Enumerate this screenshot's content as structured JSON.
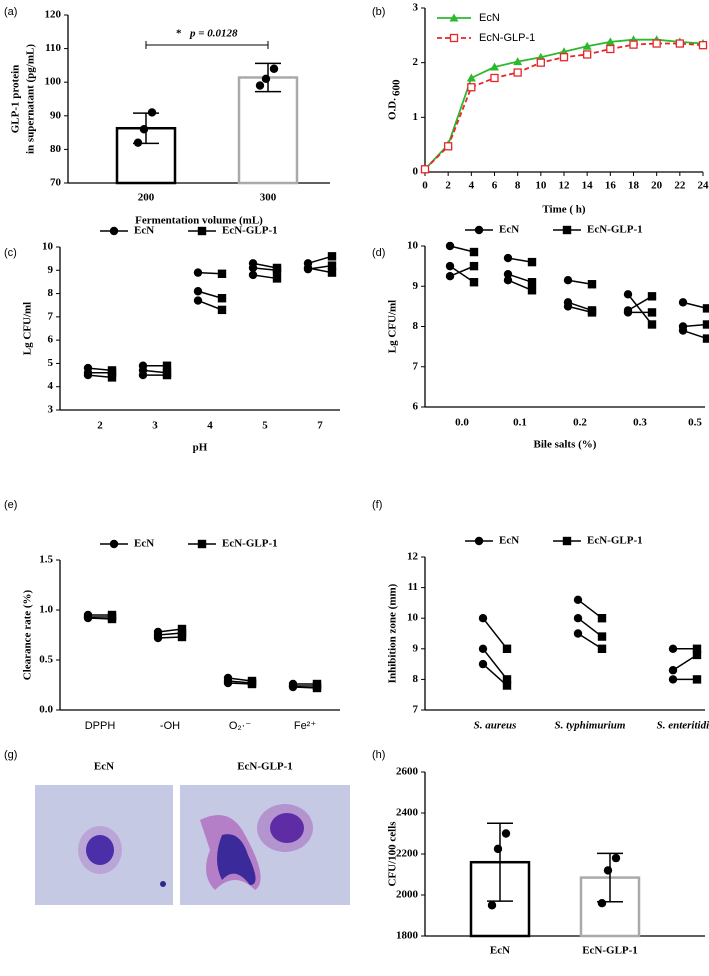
{
  "chart_data": [
    {
      "type": "bar",
      "panel_label": "(a)",
      "categories": [
        "200",
        "300"
      ],
      "values": [
        86.3,
        101.4
      ],
      "errors": [
        4.5,
        4.2
      ],
      "points": [
        [
          91,
          86,
          82
        ],
        [
          104,
          101,
          99
        ]
      ],
      "colors": [
        "#000000",
        "#aaaaaa"
      ],
      "ylim": [
        70,
        120
      ],
      "yticks": [
        70,
        80,
        90,
        100,
        110,
        120
      ],
      "ylabel": [
        "GLP-1 protein",
        "in supernatant (pg/mL)"
      ],
      "xlabel": "Fermentation volume (mL)",
      "annotation": {
        "star": "*",
        "text": "p = 0.0128"
      }
    },
    {
      "type": "line",
      "panel_label": "(b)",
      "x": [
        0,
        2,
        4,
        6,
        8,
        10,
        12,
        14,
        16,
        18,
        20,
        22,
        24
      ],
      "xlim": [
        0,
        24
      ],
      "xticks": [
        0,
        2,
        4,
        6,
        8,
        10,
        12,
        14,
        16,
        18,
        20,
        22,
        24
      ],
      "ylim": [
        0,
        3
      ],
      "yticks": [
        0,
        1,
        2,
        3
      ],
      "ylabel": "O.D.",
      "ylabel_sub": "600",
      "xlabel": "Time ( h)",
      "legend": "top-left",
      "series": [
        {
          "name": "EcN",
          "color": "#2db82d",
          "marker": "triangle",
          "dash": false,
          "values": [
            0.05,
            0.5,
            1.72,
            1.92,
            2.02,
            2.1,
            2.2,
            2.3,
            2.38,
            2.42,
            2.42,
            2.38,
            2.35
          ]
        },
        {
          "name": "EcN-GLP-1",
          "color": "#e8262a",
          "marker": "open-square",
          "dash": true,
          "values": [
            0.05,
            0.47,
            1.55,
            1.72,
            1.82,
            2.0,
            2.1,
            2.15,
            2.25,
            2.33,
            2.35,
            2.35,
            2.32
          ]
        }
      ]
    },
    {
      "type": "paired",
      "panel_label": "(c)",
      "categories": [
        "2",
        "3",
        "4",
        "5",
        "7"
      ],
      "ylim": [
        3,
        10
      ],
      "yticks": [
        3,
        4,
        5,
        6,
        7,
        8,
        9,
        10
      ],
      "ylabel": "Lg CFU/ml",
      "xlabel": "pH",
      "legend": "top",
      "series": [
        {
          "name": "EcN",
          "marker": "circle",
          "values": [
            [
              4.8,
              4.6,
              4.5
            ],
            [
              4.9,
              4.7,
              4.5
            ],
            [
              8.9,
              8.1,
              7.7
            ],
            [
              9.3,
              9.1,
              8.8
            ],
            [
              9.3,
              9.1,
              9.05
            ]
          ]
        },
        {
          "name": "EcN-GLP-1",
          "marker": "square",
          "values": [
            [
              4.7,
              4.6,
              4.4
            ],
            [
              4.9,
              4.6,
              4.5
            ],
            [
              8.85,
              7.8,
              7.3
            ],
            [
              9.1,
              9.0,
              8.65
            ],
            [
              9.6,
              8.9,
              9.2
            ]
          ]
        }
      ]
    },
    {
      "type": "paired",
      "panel_label": "(d)",
      "categories": [
        "0.0",
        "0.1",
        "0.2",
        "0.3",
        "0.5"
      ],
      "ylim": [
        6,
        10
      ],
      "yticks": [
        6,
        7,
        8,
        9,
        10
      ],
      "ylabel": "Lg CFU/ml",
      "xlabel": "Bile salts (%)",
      "legend": "top",
      "series": [
        {
          "name": "EcN",
          "marker": "circle",
          "values": [
            [
              10,
              9.5,
              9.25
            ],
            [
              9.7,
              9.3,
              9.15
            ],
            [
              9.15,
              8.6,
              8.5
            ],
            [
              8.8,
              8.4,
              8.35
            ],
            [
              8.6,
              8.0,
              7.9
            ]
          ]
        },
        {
          "name": "EcN-GLP-1",
          "marker": "square",
          "values": [
            [
              9.85,
              9.1,
              9.5
            ],
            [
              9.6,
              9.1,
              8.9
            ],
            [
              9.05,
              8.4,
              8.35
            ],
            [
              8.05,
              8.75,
              8.35
            ],
            [
              8.45,
              8.05,
              7.7
            ]
          ]
        }
      ]
    },
    {
      "type": "paired",
      "panel_label": "(e)",
      "categories": [
        "DPPH",
        "-OH",
        "O₂·⁻",
        "Fe²⁺"
      ],
      "ylim": [
        0,
        1.5
      ],
      "yticks": [
        {
          "value": 0,
          "label": "0.0"
        },
        0.5,
        {
          "value": 1,
          "label": "1.0"
        },
        1.5
      ],
      "ylabel": "Clearance rate (%)",
      "legend": "top",
      "series": [
        {
          "name": "EcN",
          "marker": "circle",
          "values": [
            [
              0.95,
              0.93,
              0.92
            ],
            [
              0.78,
              0.75,
              0.72
            ],
            [
              0.32,
              0.29,
              0.27
            ],
            [
              0.26,
              0.24,
              0.23
            ]
          ]
        },
        {
          "name": "EcN-GLP-1",
          "marker": "square",
          "values": [
            [
              0.95,
              0.93,
              0.91
            ],
            [
              0.81,
              0.77,
              0.73
            ],
            [
              0.29,
              0.27,
              0.26
            ],
            [
              0.26,
              0.24,
              0.22
            ]
          ]
        }
      ]
    },
    {
      "type": "paired",
      "panel_label": "(f)",
      "categories": [
        "S. aureus",
        "S. typhimurium",
        "S. enteritidis"
      ],
      "italic_categories": true,
      "ylim": [
        7,
        12
      ],
      "yticks": [
        7,
        8,
        9,
        10,
        11,
        12
      ],
      "ylabel": "Inhibition zone (mm)",
      "legend": "top",
      "series": [
        {
          "name": "EcN",
          "marker": "circle",
          "values": [
            [
              10,
              9,
              8.5
            ],
            [
              10.6,
              10,
              9.5
            ],
            [
              9,
              8.3,
              8
            ]
          ]
        },
        {
          "name": "EcN-GLP-1",
          "marker": "square",
          "values": [
            [
              9,
              8,
              7.8
            ],
            [
              10,
              9.4,
              9
            ],
            [
              9,
              8.8,
              8
            ]
          ]
        }
      ]
    },
    {
      "type": "image",
      "panel_label": "(g)",
      "labels": [
        "EcN",
        "EcN-GLP-1"
      ]
    },
    {
      "type": "bar",
      "panel_label": "(h)",
      "categories": [
        "EcN",
        "EcN-GLP-1"
      ],
      "values": [
        2160,
        2085
      ],
      "errors": [
        190,
        118
      ],
      "points": [
        [
          2300,
          2225,
          1950
        ],
        [
          2180,
          2120,
          1960
        ]
      ],
      "colors": [
        "#000000",
        "#aaaaaa"
      ],
      "ylim": [
        1800,
        2600
      ],
      "yticks": [
        1800,
        2000,
        2200,
        2400,
        2600
      ],
      "ylabel": "CFU/100 cells"
    }
  ]
}
